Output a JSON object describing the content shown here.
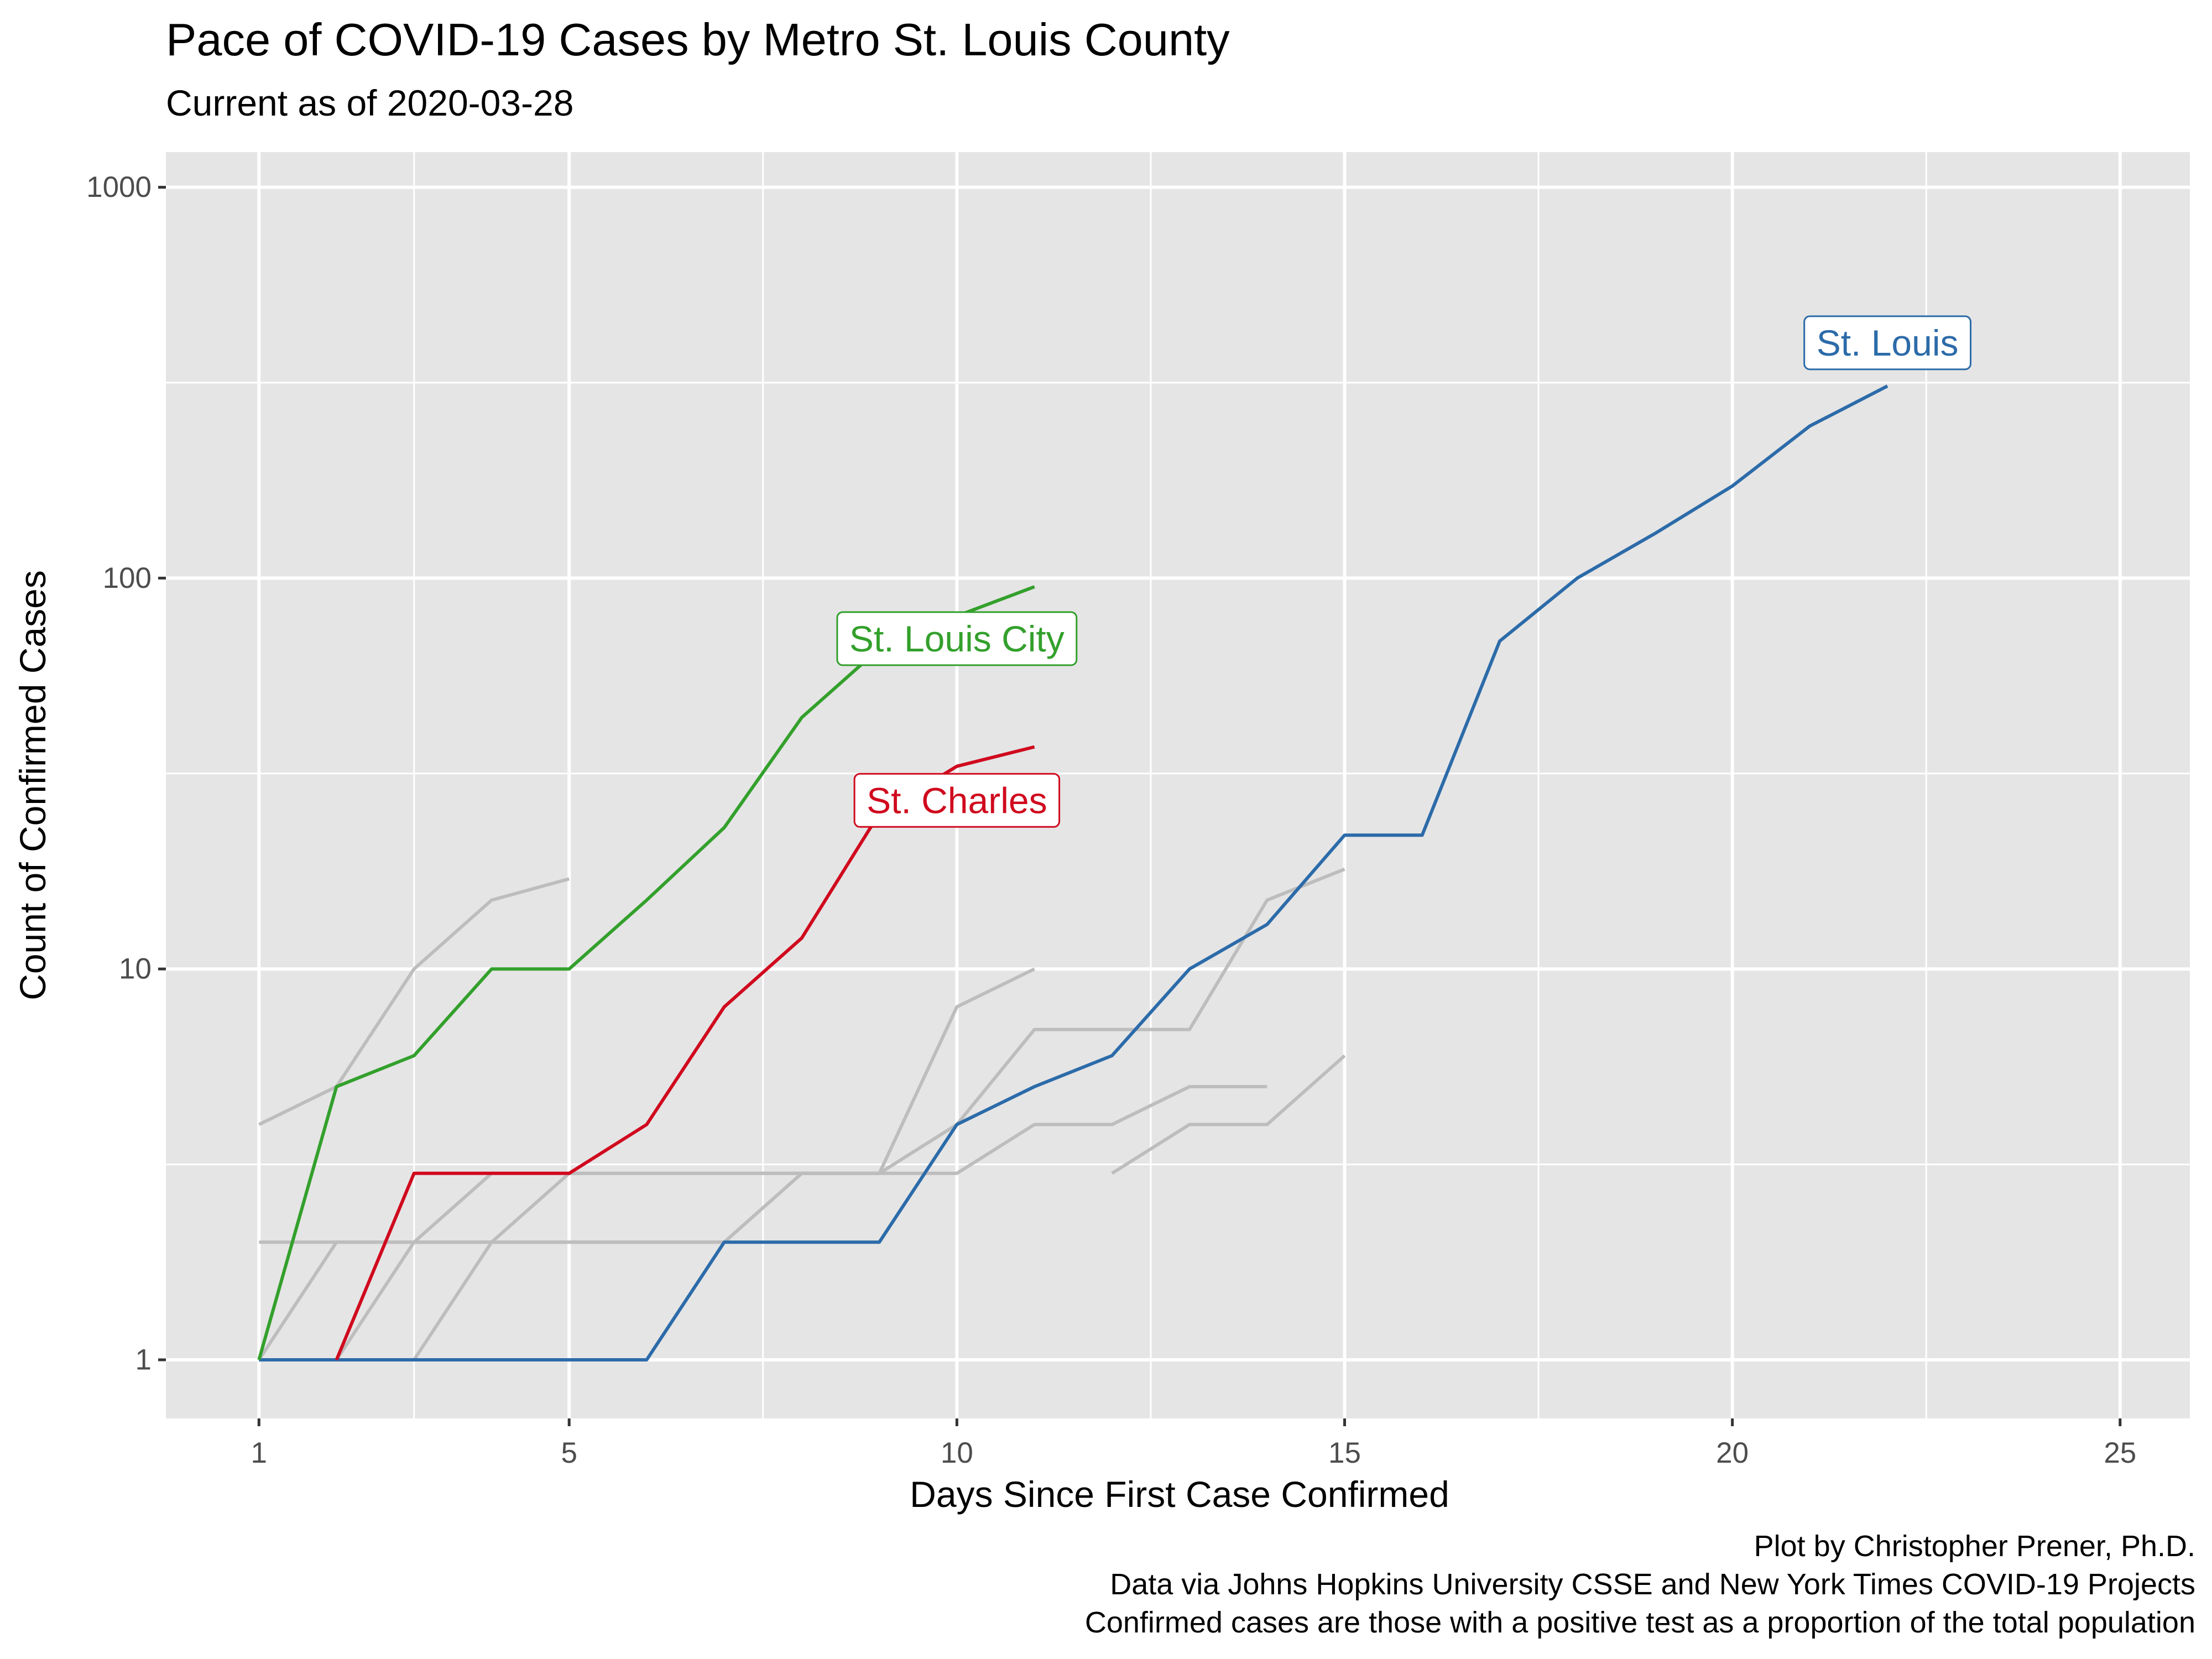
{
  "chart_data": {
    "type": "line",
    "title": "Pace of COVID-19 Cases by Metro St. Louis County",
    "subtitle": "Current as of 2020-03-28",
    "xlabel": "Days Since First Case Confirmed",
    "ylabel": "Count of Confirmed Cases",
    "xlim": [
      -0.2,
      25.9
    ],
    "ylim_log10": [
      -0.15,
      3.09
    ],
    "yscale": "log",
    "x_ticks": [
      1,
      5,
      10,
      15,
      20,
      25
    ],
    "x_tick_labels": [
      "1",
      "5",
      "10",
      "15",
      "20",
      "25"
    ],
    "y_ticks": [
      1,
      10,
      100,
      1000
    ],
    "y_tick_labels": [
      "1",
      "10",
      "100",
      "1000"
    ],
    "grid": true,
    "legend": "none",
    "highlighted_series": [
      {
        "name": "St. Louis",
        "label": "St. Louis",
        "color": "#2c6ba9",
        "x": [
          1,
          2,
          3,
          4,
          5,
          6,
          7,
          8,
          9,
          10,
          11,
          12,
          13,
          14,
          15,
          16,
          17,
          18,
          19,
          20,
          21,
          22
        ],
        "y": [
          1,
          1,
          1,
          1,
          1,
          1,
          2,
          2,
          2,
          4,
          5,
          6,
          10,
          13,
          22,
          22,
          69,
          100,
          130,
          172,
          245,
          310
        ],
        "label_at": [
          22,
          400
        ]
      },
      {
        "name": "St. Louis City",
        "label": "St. Louis City",
        "color": "#33a02c",
        "x": [
          1,
          2,
          3,
          4,
          5,
          6,
          7,
          8,
          9,
          10,
          11
        ],
        "y": [
          1,
          5,
          6,
          10,
          10,
          15,
          23,
          44,
          66,
          80,
          95
        ],
        "label_at": [
          10,
          70
        ]
      },
      {
        "name": "St. Charles",
        "label": "St. Charles",
        "color": "#d00a1e",
        "x": [
          2,
          3,
          4,
          5,
          6,
          7,
          8,
          9,
          10,
          11
        ],
        "y": [
          1,
          3,
          3,
          3,
          4,
          8,
          12,
          25,
          33,
          37
        ],
        "label_at": [
          10,
          27
        ]
      }
    ],
    "background_series": [
      {
        "color": "#bdbdbd",
        "x": [
          1,
          2,
          3,
          4,
          5
        ],
        "y": [
          4,
          5,
          10,
          15,
          17
        ]
      },
      {
        "color": "#bdbdbd",
        "x": [
          1,
          2,
          3,
          4,
          5,
          6,
          7,
          8,
          9,
          10,
          11
        ],
        "y": [
          1,
          2,
          2,
          2,
          2,
          2,
          2,
          3,
          3,
          8,
          10
        ]
      },
      {
        "color": "#bdbdbd",
        "x": [
          1,
          2,
          3,
          4,
          5,
          6,
          7,
          8,
          9,
          10,
          11,
          12,
          13,
          14,
          15
        ],
        "y": [
          2,
          2,
          2,
          2,
          2,
          2,
          2,
          3,
          3,
          4,
          7,
          7,
          7,
          15,
          18
        ]
      },
      {
        "color": "#bdbdbd",
        "x": [
          1,
          2,
          3,
          4,
          5,
          6,
          7,
          8,
          9,
          10,
          11,
          12,
          13,
          14
        ],
        "y": [
          1,
          1,
          2,
          3,
          3,
          3,
          3,
          3,
          3,
          3,
          4,
          4,
          5,
          5
        ]
      },
      {
        "color": "#bdbdbd",
        "x": [
          2,
          3,
          4,
          5,
          6,
          7,
          8,
          9
        ],
        "y": [
          1,
          1,
          2,
          3,
          3,
          3,
          3,
          3
        ]
      },
      {
        "color": "#bdbdbd",
        "x": [
          12,
          13,
          14,
          15
        ],
        "y": [
          3,
          4,
          4,
          6
        ]
      }
    ]
  },
  "captions": [
    "Plot by Christopher Prener, Ph.D.",
    "Data via Johns Hopkins University CSSE and New York Times COVID-19 Projects",
    "Confirmed cases are those with a positive test as a proportion of the total population"
  ],
  "colors": {
    "panel_background": "#e5e5e5",
    "grid_major": "#ffffff",
    "background_line": "#bdbdbd"
  }
}
